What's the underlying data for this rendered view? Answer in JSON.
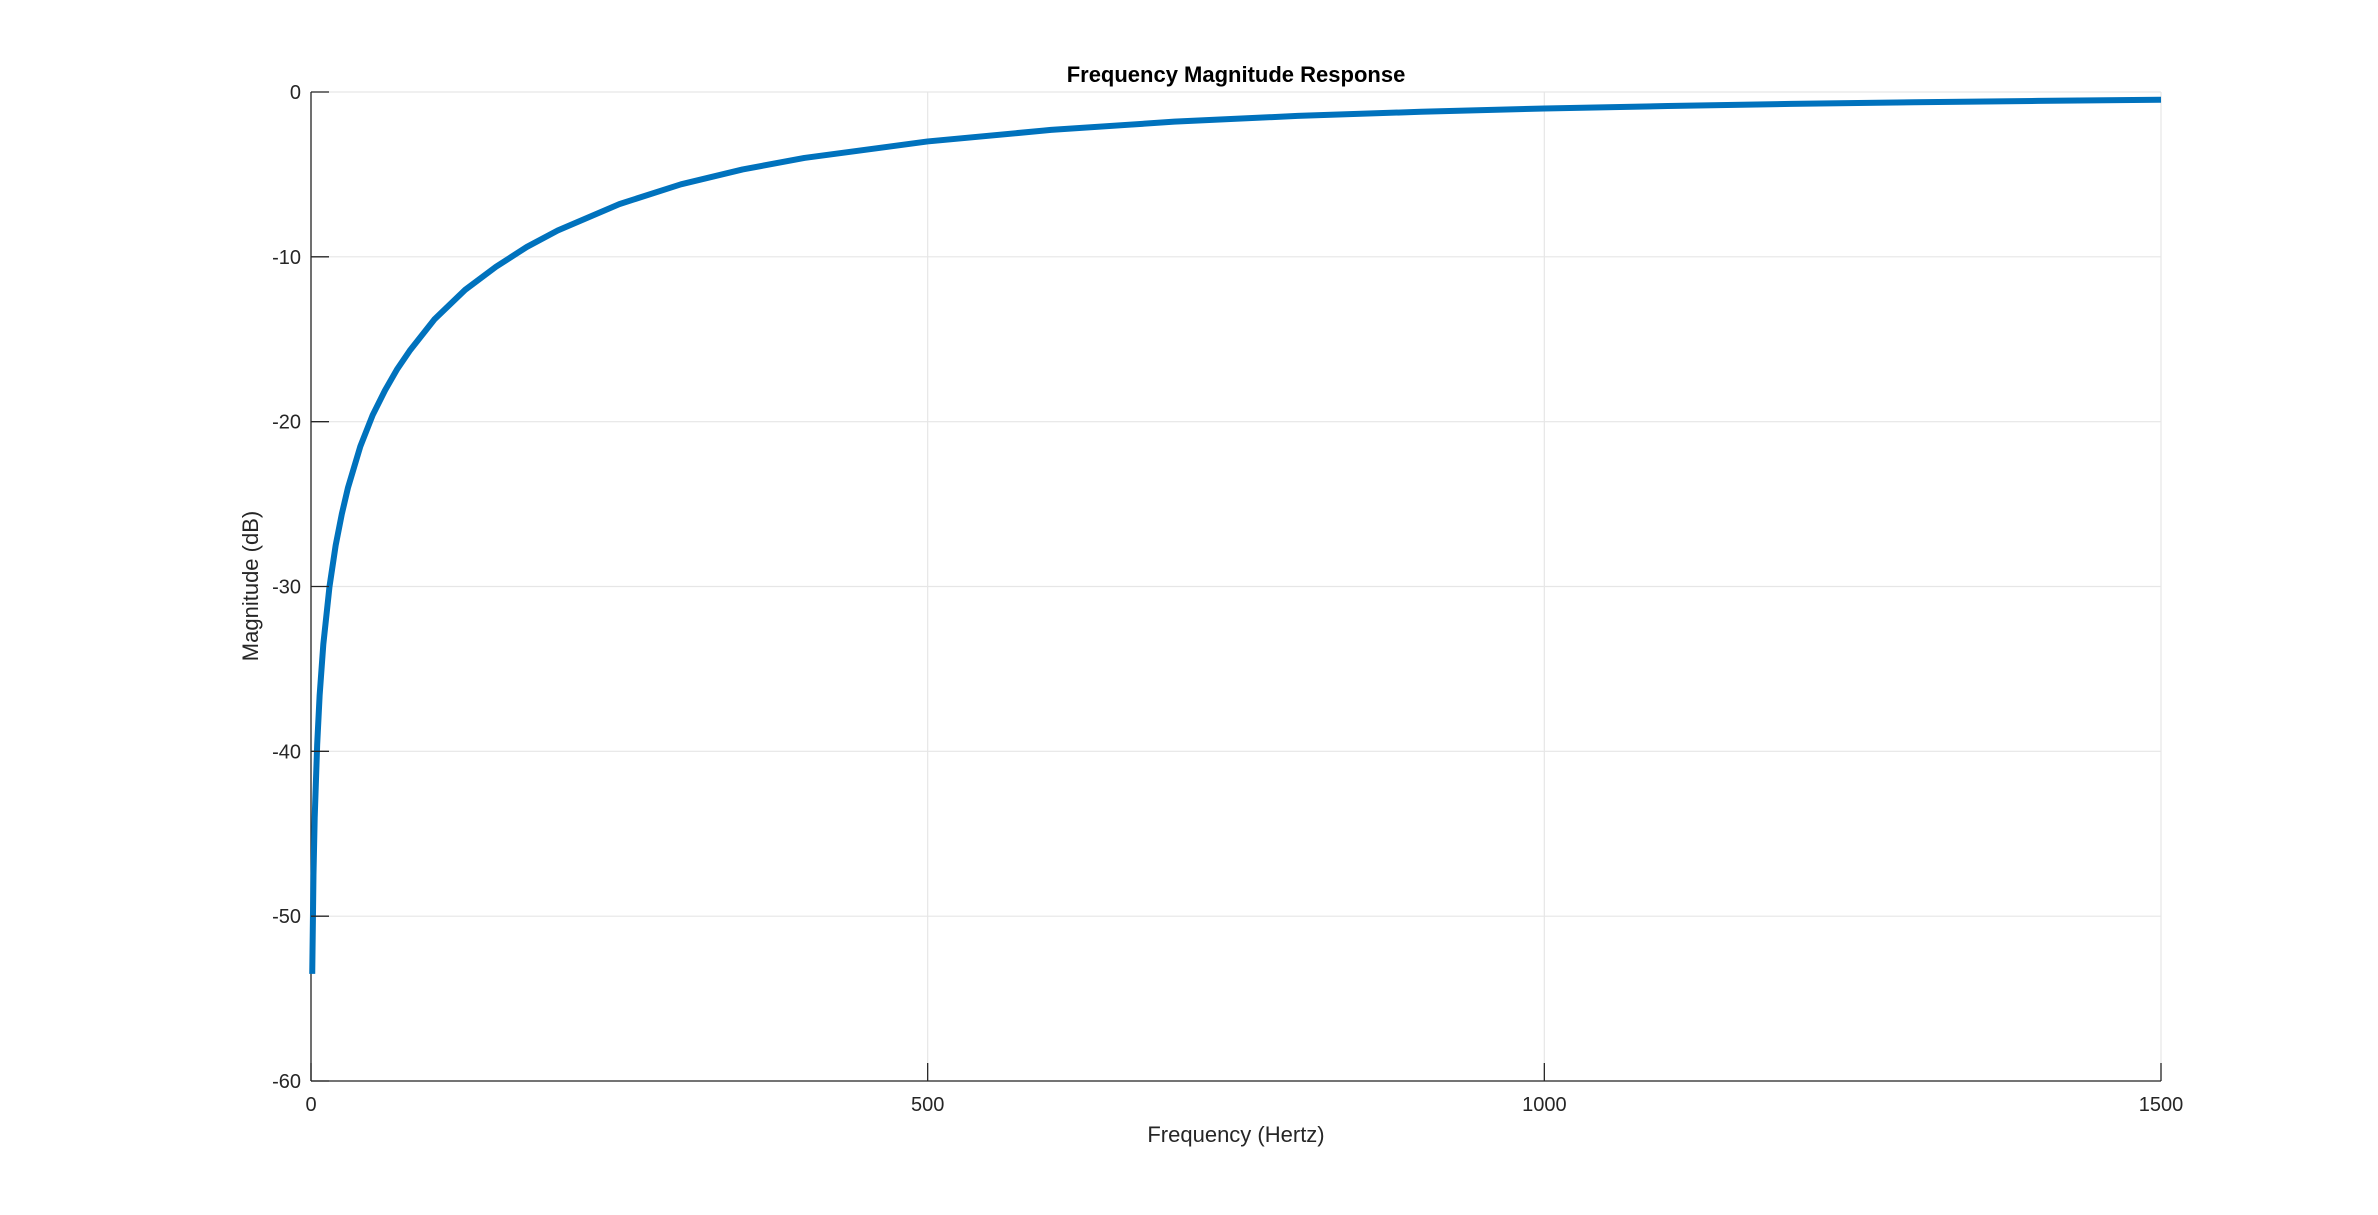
{
  "figure": {
    "background": "#ffffff"
  },
  "chart_data": {
    "type": "line",
    "title": "Frequency Magnitude Response",
    "xlabel": "Frequency (Hertz)",
    "ylabel": "Magnitude (dB)",
    "xlim": [
      0,
      1500
    ],
    "ylim": [
      -60,
      0
    ],
    "xticks": [
      0,
      500,
      1000,
      1500
    ],
    "yticks": [
      0,
      -10,
      -20,
      -30,
      -40,
      -50,
      -60
    ],
    "grid": true,
    "legend": "none",
    "colors": {
      "line": "#0072BD",
      "grid": "#e6e6e6",
      "axis": "#262626"
    },
    "series": [
      {
        "x": [
          1,
          2,
          3,
          5,
          7,
          10,
          15,
          20,
          25,
          30,
          40,
          50,
          60,
          70,
          80,
          100,
          125,
          150,
          175,
          200,
          250,
          300,
          350,
          400,
          500,
          600,
          700,
          800,
          900,
          1000,
          1100,
          1200,
          1300,
          1400,
          1500
        ],
        "y": [
          -53.5,
          -47.5,
          -44.0,
          -39.6,
          -36.6,
          -33.5,
          -30.0,
          -27.5,
          -25.6,
          -24.0,
          -21.5,
          -19.6,
          -18.1,
          -16.8,
          -15.7,
          -13.8,
          -12.0,
          -10.6,
          -9.4,
          -8.4,
          -6.8,
          -5.6,
          -4.7,
          -4.0,
          -3.0,
          -2.3,
          -1.8,
          -1.45,
          -1.2,
          -1.0,
          -0.85,
          -0.72,
          -0.62,
          -0.54,
          -0.47
        ]
      }
    ]
  }
}
